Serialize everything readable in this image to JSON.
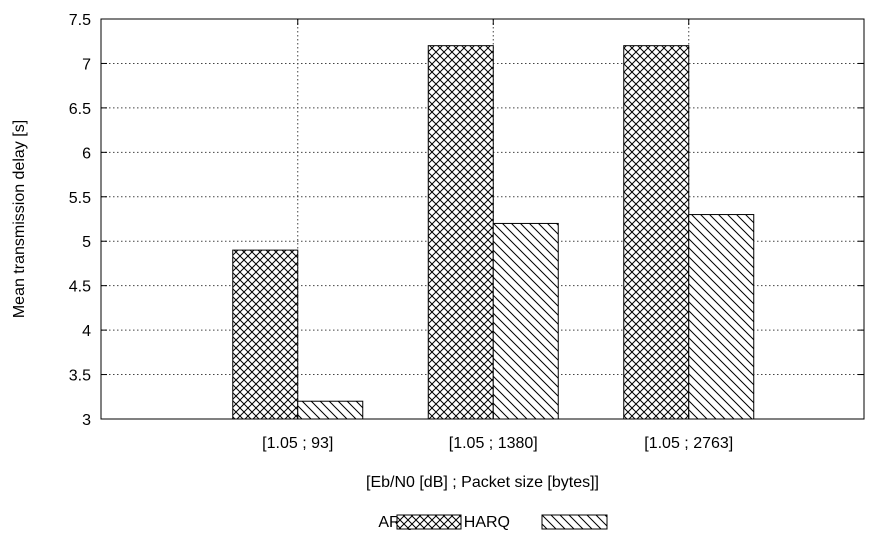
{
  "chart_data": {
    "type": "bar",
    "title": "",
    "xlabel": "[Eb/N0 [dB] ; Packet size [bytes]]",
    "ylabel": "Mean transmission delay [s]",
    "categories": [
      "[1.05 ; 93]",
      "[1.05 ; 1380]",
      "[1.05 ; 2763]"
    ],
    "series": [
      {
        "name": "ARQ",
        "values": [
          4.9,
          7.2,
          7.2
        ],
        "pattern": "crosshatch"
      },
      {
        "name": "HARQ",
        "values": [
          3.2,
          5.2,
          5.3
        ],
        "pattern": "diagonal"
      }
    ],
    "ylim": [
      3,
      7.5
    ],
    "yticks": [
      3,
      3.5,
      4,
      4.5,
      5,
      5.5,
      6,
      6.5,
      7,
      7.5
    ],
    "grid": true,
    "legend_position": "bottom-center",
    "colors": {
      "axis": "#000000",
      "bar_fill": "#ffffff",
      "hatch": "#000000"
    }
  }
}
